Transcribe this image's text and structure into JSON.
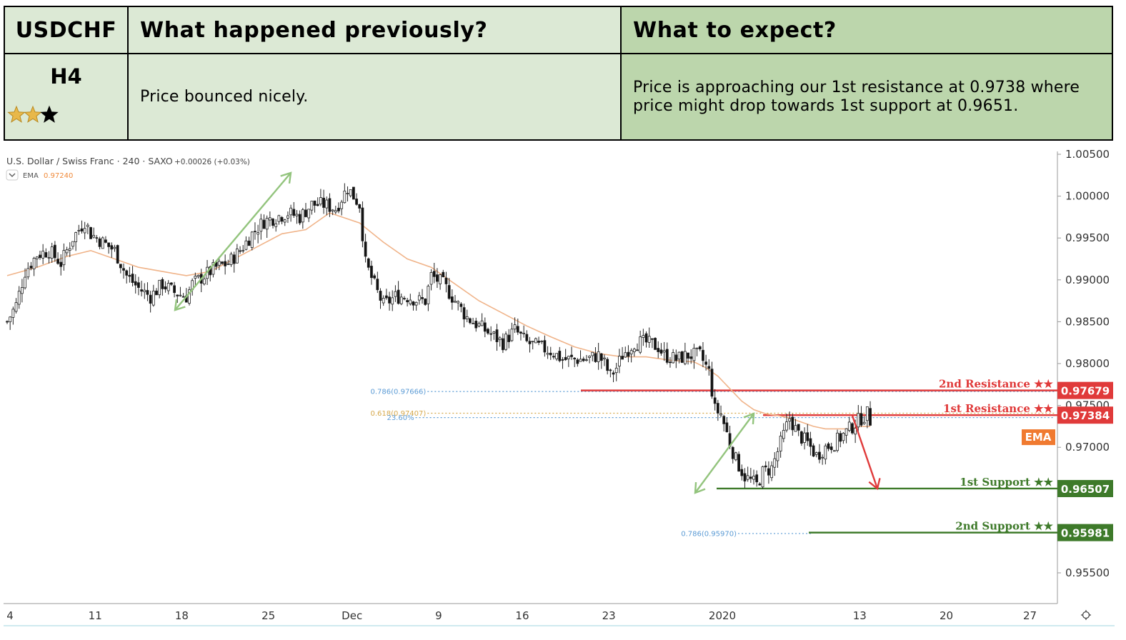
{
  "header": {
    "symbol": "USDCHF",
    "timeframe": "H4",
    "rating": {
      "filled": 2,
      "total": 3
    },
    "col2_title": "What happened previously?",
    "col3_title": "What to expect?",
    "previous_text": "Price bounced nicely.",
    "expect_text_line1": "Price is approaching our 1st resistance at 0.9738 where",
    "expect_text_line2": "price might drop towards 1st support at 0.9651."
  },
  "chart_legend": {
    "title": "U.S. Dollar / Swiss Franc · 240 · SAXO",
    "change": "+0.00026 (+0.03%)",
    "indicator": "EMA",
    "indicator_value": "0.97240"
  },
  "colors": {
    "resistance": "#e03a3a",
    "support": "#3e7a2a",
    "ema": "#f0b48a",
    "arrow_green": "#93c47d",
    "up_candle": "#ffffff",
    "down_candle": "#111111",
    "fib_blue": "#5b9bd5",
    "fib_gold": "#d6a84b",
    "ema_tag": "#f07a30"
  },
  "chart_data": {
    "type": "candlestick",
    "ylim": [
      0.9532,
      1.0053
    ],
    "y_ticks": [
      "1.00500",
      "1.00000",
      "0.99500",
      "0.99000",
      "0.98500",
      "0.98000",
      "0.97500",
      "0.97000",
      "0.96500",
      "0.95500"
    ],
    "x_ticks": [
      "4",
      "11",
      "18",
      "25",
      "Dec",
      "9",
      "16",
      "23",
      "2020",
      "13",
      "20",
      "27"
    ],
    "close_path": [
      [
        0,
        0.985
      ],
      [
        3,
        0.987
      ],
      [
        6,
        0.991
      ],
      [
        10,
        0.993
      ],
      [
        14,
        0.9935
      ],
      [
        18,
        0.992
      ],
      [
        22,
        0.995
      ],
      [
        26,
        0.997
      ],
      [
        28,
        0.9955
      ],
      [
        32,
        0.9945
      ],
      [
        36,
        0.9935
      ],
      [
        40,
        0.9905
      ],
      [
        44,
        0.989
      ],
      [
        48,
        0.988
      ],
      [
        52,
        0.9895
      ],
      [
        56,
        0.9885
      ],
      [
        60,
        0.988
      ],
      [
        62,
        0.9895
      ],
      [
        66,
        0.9905
      ],
      [
        70,
        0.9915
      ],
      [
        74,
        0.992
      ],
      [
        78,
        0.9935
      ],
      [
        82,
        0.9955
      ],
      [
        86,
        0.997
      ],
      [
        90,
        0.9975
      ],
      [
        94,
        0.998
      ],
      [
        98,
        0.9975
      ],
      [
        102,
        0.999
      ],
      [
        106,
        0.999
      ],
      [
        110,
        0.9985
      ],
      [
        114,
        1.001
      ],
      [
        116,
        1.0
      ],
      [
        118,
        0.999
      ],
      [
        120,
        0.992
      ],
      [
        124,
        0.9885
      ],
      [
        126,
        0.987
      ],
      [
        130,
        0.988
      ],
      [
        134,
        0.988
      ],
      [
        138,
        0.9875
      ],
      [
        140,
        0.9875
      ],
      [
        142,
        0.9905
      ],
      [
        146,
        0.9895
      ],
      [
        150,
        0.9875
      ],
      [
        154,
        0.9855
      ],
      [
        158,
        0.9845
      ],
      [
        162,
        0.9835
      ],
      [
        166,
        0.9825
      ],
      [
        170,
        0.984
      ],
      [
        174,
        0.9825
      ],
      [
        178,
        0.982
      ],
      [
        182,
        0.9815
      ],
      [
        186,
        0.9805
      ],
      [
        190,
        0.9805
      ],
      [
        194,
        0.9805
      ],
      [
        198,
        0.981
      ],
      [
        200,
        0.98
      ],
      [
        202,
        0.9785
      ],
      [
        204,
        0.9795
      ],
      [
        206,
        0.981
      ],
      [
        210,
        0.9825
      ],
      [
        214,
        0.9825
      ],
      [
        218,
        0.982
      ],
      [
        220,
        0.981
      ],
      [
        224,
        0.9805
      ],
      [
        228,
        0.981
      ],
      [
        232,
        0.981
      ],
      [
        235,
        0.979
      ],
      [
        237,
        0.9745
      ],
      [
        239,
        0.974
      ],
      [
        242,
        0.9705
      ],
      [
        244,
        0.9685
      ],
      [
        247,
        0.9665
      ],
      [
        249,
        0.966
      ],
      [
        251,
        0.9655
      ],
      [
        253,
        0.967
      ],
      [
        256,
        0.9675
      ],
      [
        259,
        0.9705
      ],
      [
        262,
        0.9735
      ],
      [
        265,
        0.9715
      ],
      [
        268,
        0.9705
      ],
      [
        271,
        0.969
      ],
      [
        274,
        0.97
      ],
      [
        277,
        0.9705
      ],
      [
        280,
        0.9715
      ],
      [
        283,
        0.9725
      ],
      [
        286,
        0.9735
      ],
      [
        288,
        0.974
      ],
      [
        289,
        0.9732
      ]
    ],
    "ema_path": [
      [
        0,
        0.9905
      ],
      [
        10,
        0.9915
      ],
      [
        20,
        0.9928
      ],
      [
        28,
        0.9935
      ],
      [
        36,
        0.9925
      ],
      [
        44,
        0.9915
      ],
      [
        52,
        0.991
      ],
      [
        60,
        0.9905
      ],
      [
        68,
        0.991
      ],
      [
        76,
        0.9925
      ],
      [
        84,
        0.994
      ],
      [
        92,
        0.9955
      ],
      [
        100,
        0.996
      ],
      [
        108,
        0.998
      ],
      [
        118,
        0.9968
      ],
      [
        126,
        0.9945
      ],
      [
        134,
        0.9925
      ],
      [
        142,
        0.9915
      ],
      [
        150,
        0.9895
      ],
      [
        158,
        0.9875
      ],
      [
        166,
        0.986
      ],
      [
        174,
        0.9845
      ],
      [
        182,
        0.9832
      ],
      [
        190,
        0.982
      ],
      [
        198,
        0.9812
      ],
      [
        206,
        0.9808
      ],
      [
        214,
        0.9808
      ],
      [
        222,
        0.9804
      ],
      [
        230,
        0.9802
      ],
      [
        234,
        0.9795
      ],
      [
        238,
        0.9785
      ],
      [
        242,
        0.977
      ],
      [
        246,
        0.9755
      ],
      [
        250,
        0.9745
      ],
      [
        254,
        0.974
      ],
      [
        258,
        0.9738
      ],
      [
        262,
        0.9735
      ],
      [
        266,
        0.973
      ],
      [
        270,
        0.9725
      ],
      [
        274,
        0.9722
      ],
      [
        278,
        0.9722
      ],
      [
        282,
        0.9722
      ],
      [
        286,
        0.9725
      ],
      [
        289,
        0.9725
      ]
    ],
    "levels": [
      {
        "name": "2nd Resistance ★★",
        "value": 0.97679,
        "label": "0.97679",
        "kind": "resistance",
        "x_start": 199
      },
      {
        "name": "1st Resistance ★★",
        "value": 0.97384,
        "label": "0.97384",
        "kind": "resistance",
        "x_start": 262
      },
      {
        "name": "1st Support ★★",
        "value": 0.96507,
        "label": "0.96507",
        "kind": "support",
        "x_start": 247
      },
      {
        "name": "2nd Support ★★",
        "value": 0.95981,
        "label": "0.95981",
        "kind": "support",
        "x_start": 278
      }
    ],
    "fib": [
      {
        "label": "0.786(0.97666)",
        "value": 0.97666,
        "x_start": 124,
        "x_end": 199
      },
      {
        "label": "0.618(0.97407)",
        "value": 0.97407,
        "x_start": 124,
        "x_end": 262
      },
      {
        "label": "23.60%",
        "value": 0.97355,
        "x_start": 120,
        "x_end": 262
      },
      {
        "label": "0.786(0.95970)",
        "value": 0.9597,
        "x_start": 228,
        "x_end": 278
      }
    ],
    "ema_tag": "EMA",
    "arrows": [
      {
        "kind": "up",
        "from": [
          59,
          0.9865
        ],
        "to": [
          100,
          1.0035
        ]
      },
      {
        "kind": "up",
        "from": [
          238,
          0.9644
        ],
        "to": [
          258,
          0.974
        ]
      },
      {
        "kind": "down",
        "from": [
          293,
          0.97384
        ],
        "to": [
          303,
          0.96507
        ]
      }
    ]
  }
}
